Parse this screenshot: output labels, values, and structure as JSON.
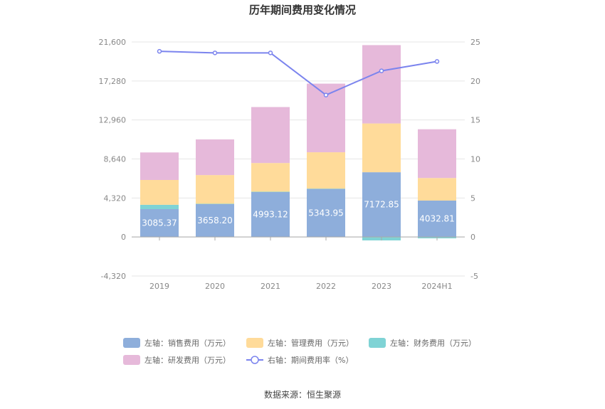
{
  "chart_data": {
    "type": "bar",
    "title": "历年期间费用变化情况",
    "categories": [
      "2019",
      "2020",
      "2021",
      "2022",
      "2023",
      "2024H1"
    ],
    "series": [
      {
        "name": "左轴：销售费用（万元）",
        "axis": "left",
        "color": "#8eaedb",
        "values": [
          3085.37,
          3658.2,
          4993.12,
          5343.95,
          7172.85,
          4032.81
        ]
      },
      {
        "name": "左轴：管理费用（万元）",
        "axis": "left",
        "color": "#ffdb9a",
        "values": [
          2750,
          3180,
          3180,
          4030,
          5400,
          2500
        ]
      },
      {
        "name": "左轴：财务费用（万元）",
        "axis": "left",
        "color": "#7fd3d5",
        "values": [
          480,
          20,
          20,
          10,
          -380,
          -150
        ]
      },
      {
        "name": "左轴：研发费用（万元）",
        "axis": "left",
        "color": "#e6b9da",
        "values": [
          3050,
          3950,
          6200,
          7600,
          8680,
          5400
        ]
      },
      {
        "name": "右轴：期间费用率（%）",
        "axis": "right",
        "type": "line",
        "color": "#7b84ee",
        "values": [
          23.8,
          23.6,
          23.6,
          18.2,
          21.3,
          22.5
        ]
      }
    ],
    "data_labels": [
      "3085.37",
      "3658.20",
      "4993.12",
      "5343.95",
      "7172.85",
      "4032.81"
    ],
    "y_left": {
      "ticks": [
        "-4,320",
        "0",
        "4,320",
        "8,640",
        "12,960",
        "17,280",
        "21,600"
      ],
      "ylim": [
        -4320,
        21600
      ]
    },
    "y_right": {
      "ticks": [
        "-5",
        "0",
        "5",
        "10",
        "15",
        "20",
        "25"
      ],
      "ylim": [
        -5,
        25
      ]
    },
    "grid": true,
    "legend_position": "bottom"
  },
  "source_text": "数据来源：恒生聚源"
}
